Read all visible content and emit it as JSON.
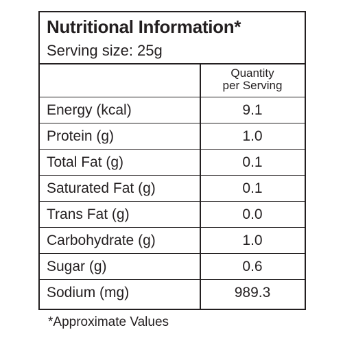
{
  "panel": {
    "title": "Nutritional Information*",
    "serving_size": "Serving size: 25g"
  },
  "table": {
    "column_header_line1": "Quantity",
    "column_header_line2": "per Serving",
    "rows": [
      {
        "name": "Energy (kcal)",
        "value": "9.1"
      },
      {
        "name": "Protein (g)",
        "value": "1.0"
      },
      {
        "name": "Total Fat (g)",
        "value": "0.1"
      },
      {
        "name": "Saturated Fat (g)",
        "value": "0.1"
      },
      {
        "name": "Trans Fat (g)",
        "value": "0.0"
      },
      {
        "name": "Carbohydrate (g)",
        "value": "1.0"
      },
      {
        "name": "Sugar (g)",
        "value": "0.6"
      },
      {
        "name": "Sodium (mg)",
        "value": "989.3"
      }
    ]
  },
  "footnote": "*Approximate Values"
}
